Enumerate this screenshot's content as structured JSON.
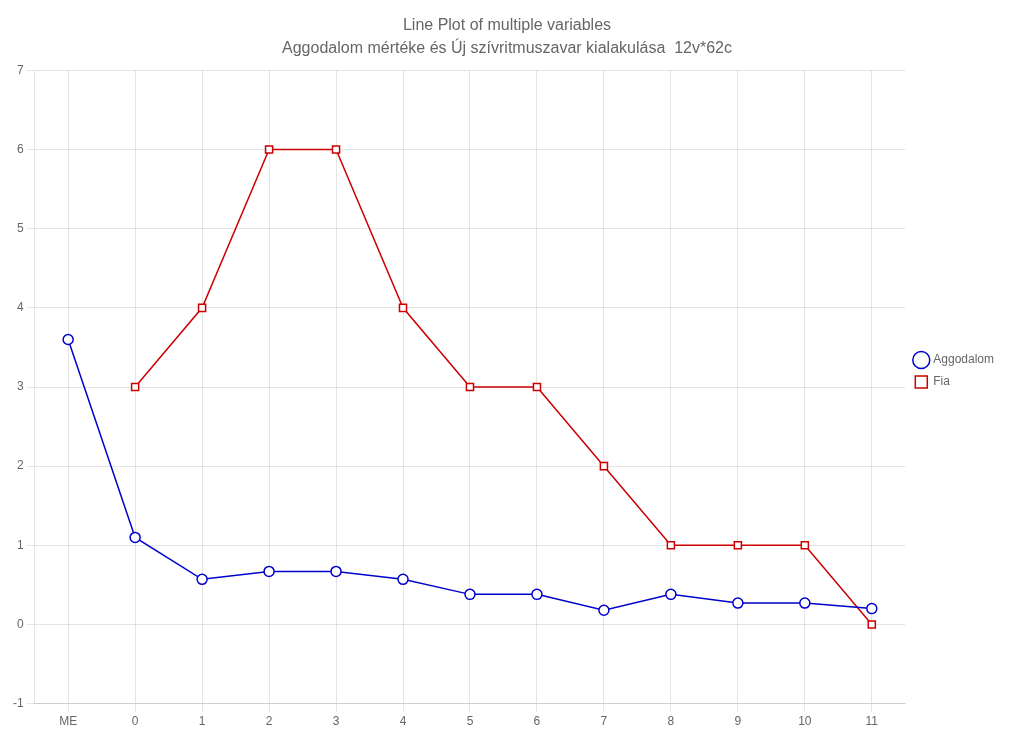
{
  "chart_data": {
    "type": "line",
    "title": "Line Plot of multiple variables",
    "subtitle": "Aggodalom mértéke és Új szívritmuszavar kialakulása  12v*62c",
    "x": [
      -1,
      0,
      1,
      2,
      3,
      4,
      5,
      6,
      7,
      8,
      9,
      10,
      11
    ],
    "series": [
      {
        "name": "Aggodalom",
        "color": "#0000cc",
        "marker": "circle",
        "values": [
          3.6,
          1.1,
          0.57,
          0.67,
          0.67,
          0.57,
          0.38,
          0.38,
          0.18,
          0.38,
          0.27,
          0.27,
          0.2
        ]
      },
      {
        "name": "Fia",
        "color": "#cc0000",
        "marker": "square",
        "values": [
          null,
          3.0,
          4.0,
          6.0,
          6.0,
          4.0,
          3.0,
          3.0,
          2.0,
          1.0,
          1.0,
          1.0,
          0.0
        ]
      }
    ],
    "xlim": [
      -1.5,
      11.5
    ],
    "xticks": [
      {
        "value": -1,
        "label": "ME"
      },
      0,
      1,
      2,
      3,
      4,
      5,
      6,
      7,
      8,
      9,
      10,
      11
    ],
    "ylim": [
      -1,
      7
    ],
    "yticks": [
      -1,
      0,
      1,
      2,
      3,
      4,
      5,
      6,
      7
    ],
    "grid": true,
    "legend": "right"
  }
}
